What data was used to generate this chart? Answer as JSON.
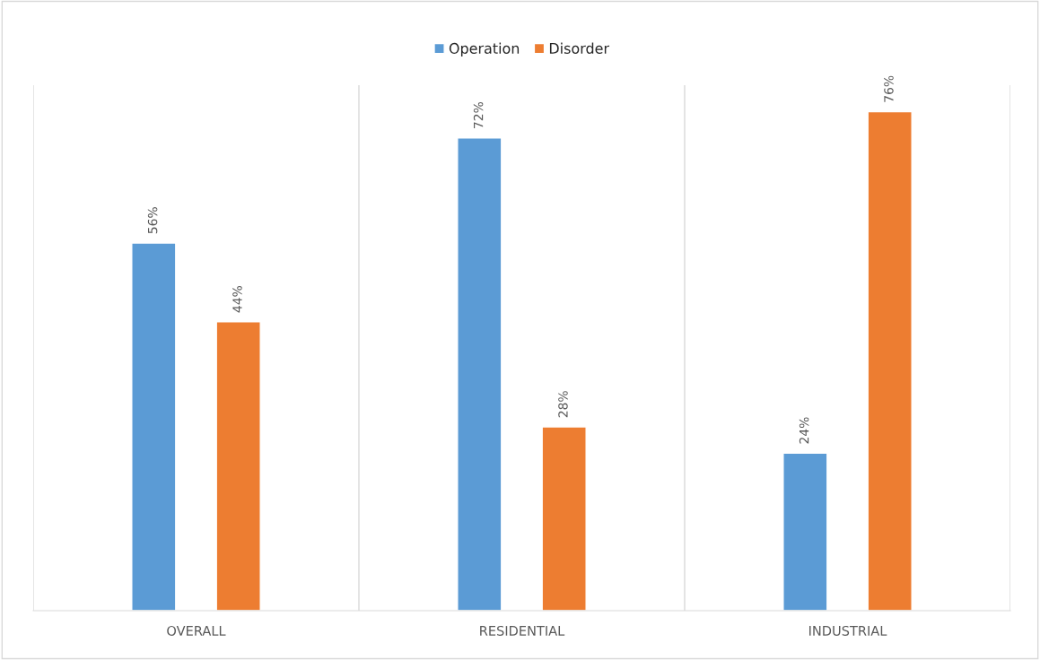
{
  "chart_data": {
    "type": "bar",
    "categories": [
      "OVERALL",
      "RESIDENTIAL",
      "INDUSTRIAL"
    ],
    "series": [
      {
        "name": "Operation",
        "color": "#5b9bd5",
        "values": [
          56,
          72,
          24
        ],
        "value_labels": [
          "56%",
          "72%",
          "24%"
        ]
      },
      {
        "name": "Disorder",
        "color": "#ed7d31",
        "values": [
          44,
          28,
          76
        ],
        "value_labels": [
          "44%",
          "28%",
          "76%"
        ]
      }
    ],
    "tick_labels": "x",
    "grid": "x",
    "legend": "top"
  }
}
